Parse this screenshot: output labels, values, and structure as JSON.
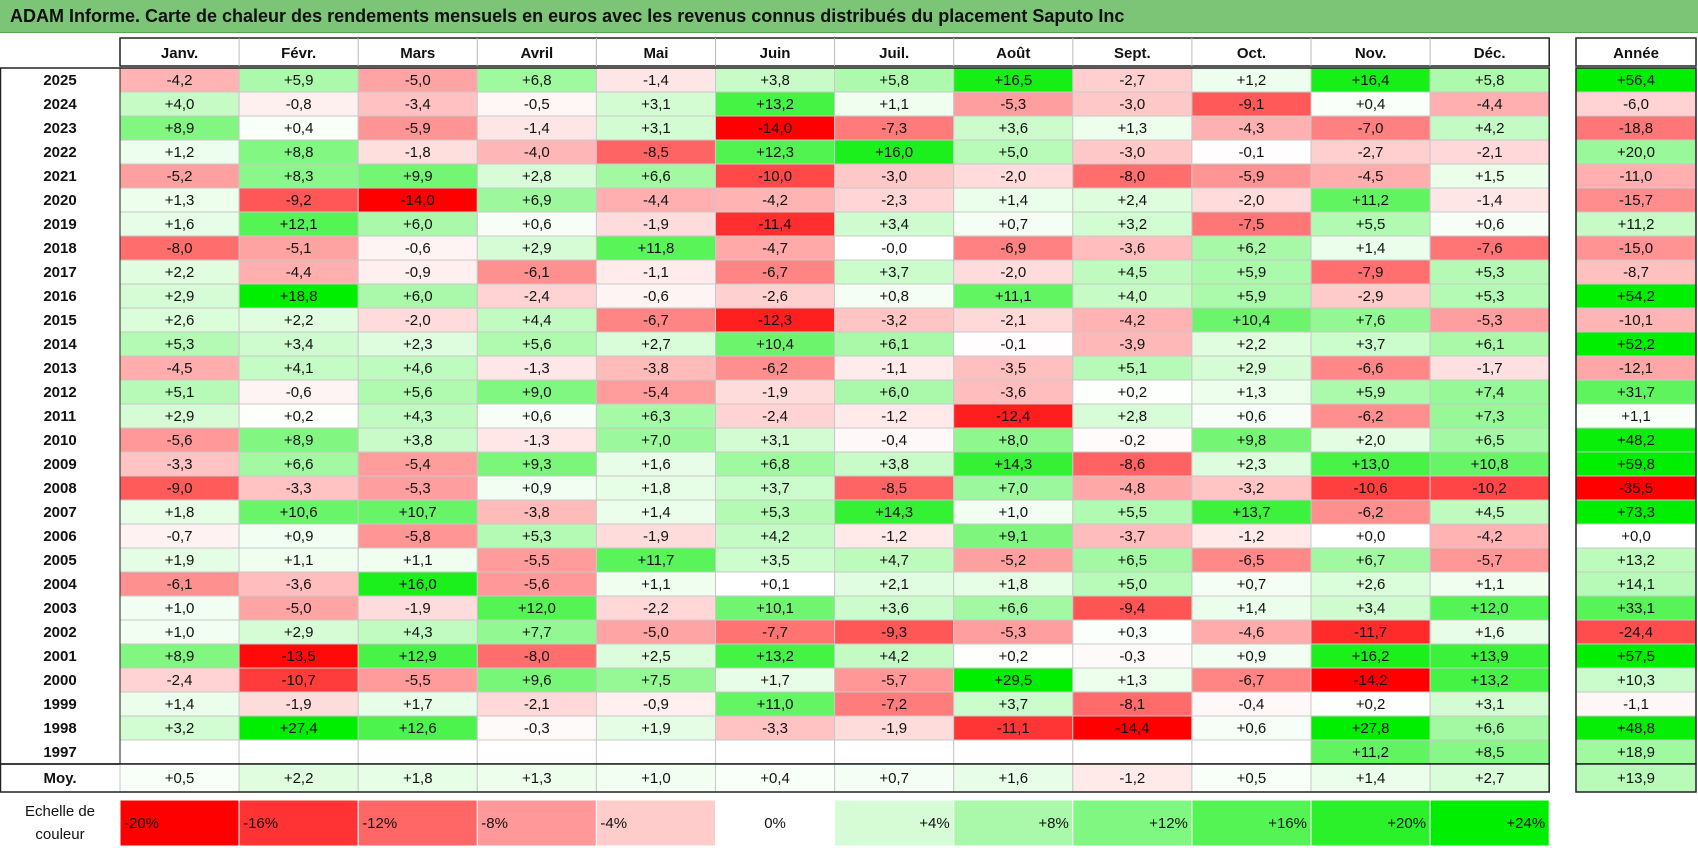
{
  "title": "ADAM Informe. Carte de chaleur des rendements mensuels en euros avec les revenus connus distribués du placement Saputo Inc",
  "chart_data": {
    "type": "heatmap",
    "columns": [
      "Janv.",
      "Févr.",
      "Mars",
      "Avril",
      "Mai",
      "Juin",
      "Juil.",
      "Août",
      "Sept.",
      "Oct.",
      "Nov.",
      "Déc."
    ],
    "year_header": "Année",
    "rows": [
      {
        "year": "2025",
        "values": [
          "-4,2",
          "+5,9",
          "-5,0",
          "+6,8",
          "-1,4",
          "+3,8",
          "+5,8",
          "+16,5",
          "-2,7",
          "+1,2",
          "+16,4",
          "+5,8"
        ],
        "annual": "+56,4"
      },
      {
        "year": "2024",
        "values": [
          "+4,0",
          "-0,8",
          "-3,4",
          "-0,5",
          "+3,1",
          "+13,2",
          "+1,1",
          "-5,3",
          "-3,0",
          "-9,1",
          "+0,4",
          "-4,4"
        ],
        "annual": "-6,0"
      },
      {
        "year": "2023",
        "values": [
          "+8,9",
          "+0,4",
          "-5,9",
          "-1,4",
          "+3,1",
          "-14,0",
          "-7,3",
          "+3,6",
          "+1,3",
          "-4,3",
          "-7,0",
          "+4,2"
        ],
        "annual": "-18,8"
      },
      {
        "year": "2022",
        "values": [
          "+1,2",
          "+8,8",
          "-1,8",
          "-4,0",
          "-8,5",
          "+12,3",
          "+16,0",
          "+5,0",
          "-3,0",
          "-0,1",
          "-2,7",
          "-2,1"
        ],
        "annual": "+20,0"
      },
      {
        "year": "2021",
        "values": [
          "-5,2",
          "+8,3",
          "+9,9",
          "+2,8",
          "+6,6",
          "-10,0",
          "-3,0",
          "-2,0",
          "-8,0",
          "-5,9",
          "-4,5",
          "+1,5"
        ],
        "annual": "-11,0"
      },
      {
        "year": "2020",
        "values": [
          "+1,3",
          "-9,2",
          "-14,0",
          "+6,9",
          "-4,4",
          "-4,2",
          "-2,3",
          "+1,4",
          "+2,4",
          "-2,0",
          "+11,2",
          "-1,4"
        ],
        "annual": "-15,7"
      },
      {
        "year": "2019",
        "values": [
          "+1,6",
          "+12,1",
          "+6,0",
          "+0,6",
          "-1,9",
          "-11,4",
          "+3,4",
          "+0,7",
          "+3,2",
          "-7,5",
          "+5,5",
          "+0,6"
        ],
        "annual": "+11,2"
      },
      {
        "year": "2018",
        "values": [
          "-8,0",
          "-5,1",
          "-0,6",
          "+2,9",
          "+11,8",
          "-4,7",
          "-0,0",
          "-6,9",
          "-3,6",
          "+6,2",
          "+1,4",
          "-7,6"
        ],
        "annual": "-15,0"
      },
      {
        "year": "2017",
        "values": [
          "+2,2",
          "-4,4",
          "-0,9",
          "-6,1",
          "-1,1",
          "-6,7",
          "+3,7",
          "-2,0",
          "+4,5",
          "+5,9",
          "-7,9",
          "+5,3"
        ],
        "annual": "-8,7"
      },
      {
        "year": "2016",
        "values": [
          "+2,9",
          "+18,8",
          "+6,0",
          "-2,4",
          "-0,6",
          "-2,6",
          "+0,8",
          "+11,1",
          "+4,0",
          "+5,9",
          "-2,9",
          "+5,3"
        ],
        "annual": "+54,2"
      },
      {
        "year": "2015",
        "values": [
          "+2,6",
          "+2,2",
          "-2,0",
          "+4,4",
          "-6,7",
          "-12,3",
          "-3,2",
          "-2,1",
          "-4,2",
          "+10,4",
          "+7,6",
          "-5,3"
        ],
        "annual": "-10,1"
      },
      {
        "year": "2014",
        "values": [
          "+5,3",
          "+3,4",
          "+2,3",
          "+5,6",
          "+2,7",
          "+10,4",
          "+6,1",
          "-0,1",
          "-3,9",
          "+2,2",
          "+3,7",
          "+6,1"
        ],
        "annual": "+52,2"
      },
      {
        "year": "2013",
        "values": [
          "-4,5",
          "+4,1",
          "+4,6",
          "-1,3",
          "-3,8",
          "-6,2",
          "-1,1",
          "-3,5",
          "+5,1",
          "+2,9",
          "-6,6",
          "-1,7"
        ],
        "annual": "-12,1"
      },
      {
        "year": "2012",
        "values": [
          "+5,1",
          "-0,6",
          "+5,6",
          "+9,0",
          "-5,4",
          "-1,9",
          "+6,0",
          "-3,6",
          "+0,2",
          "+1,3",
          "+5,9",
          "+7,4"
        ],
        "annual": "+31,7"
      },
      {
        "year": "2011",
        "values": [
          "+2,9",
          "+0,2",
          "+4,3",
          "+0,6",
          "+6,3",
          "-2,4",
          "-1,2",
          "-12,4",
          "+2,8",
          "+0,6",
          "-6,2",
          "+7,3"
        ],
        "annual": "+1,1"
      },
      {
        "year": "2010",
        "values": [
          "-5,6",
          "+8,9",
          "+3,8",
          "-1,3",
          "+7,0",
          "+3,1",
          "-0,4",
          "+8,0",
          "-0,2",
          "+9,8",
          "+2,0",
          "+6,5"
        ],
        "annual": "+48,2"
      },
      {
        "year": "2009",
        "values": [
          "-3,3",
          "+6,6",
          "-5,4",
          "+9,3",
          "+1,6",
          "+6,8",
          "+3,8",
          "+14,3",
          "-8,6",
          "+2,3",
          "+13,0",
          "+10,8"
        ],
        "annual": "+59,8"
      },
      {
        "year": "2008",
        "values": [
          "-9,0",
          "-3,3",
          "-5,3",
          "+0,9",
          "+1,8",
          "+3,7",
          "-8,5",
          "+7,0",
          "-4,8",
          "-3,2",
          "-10,6",
          "-10,2"
        ],
        "annual": "-35,5"
      },
      {
        "year": "2007",
        "values": [
          "+1,8",
          "+10,6",
          "+10,7",
          "-3,8",
          "+1,4",
          "+5,3",
          "+14,3",
          "+1,0",
          "+5,5",
          "+13,7",
          "-6,2",
          "+4,5"
        ],
        "annual": "+73,3"
      },
      {
        "year": "2006",
        "values": [
          "-0,7",
          "+0,9",
          "-5,8",
          "+5,3",
          "-1,9",
          "+4,2",
          "-1,2",
          "+9,1",
          "-3,7",
          "-1,2",
          "+0,0",
          "-4,2"
        ],
        "annual": "+0,0"
      },
      {
        "year": "2005",
        "values": [
          "+1,9",
          "+1,1",
          "+1,1",
          "-5,5",
          "+11,7",
          "+3,5",
          "+4,7",
          "-5,2",
          "+6,5",
          "-6,5",
          "+6,7",
          "-5,7"
        ],
        "annual": "+13,2"
      },
      {
        "year": "2004",
        "values": [
          "-6,1",
          "-3,6",
          "+16,0",
          "-5,6",
          "+1,1",
          "+0,1",
          "+2,1",
          "+1,8",
          "+5,0",
          "+0,7",
          "+2,6",
          "+1,1"
        ],
        "annual": "+14,1"
      },
      {
        "year": "2003",
        "values": [
          "+1,0",
          "-5,0",
          "-1,9",
          "+12,0",
          "-2,2",
          "+10,1",
          "+3,6",
          "+6,6",
          "-9,4",
          "+1,4",
          "+3,4",
          "+12,0"
        ],
        "annual": "+33,1"
      },
      {
        "year": "2002",
        "values": [
          "+1,0",
          "+2,9",
          "+4,3",
          "+7,7",
          "-5,0",
          "-7,7",
          "-9,3",
          "-5,3",
          "+0,3",
          "-4,6",
          "-11,7",
          "+1,6"
        ],
        "annual": "-24,4"
      },
      {
        "year": "2001",
        "values": [
          "+8,9",
          "-13,5",
          "+12,9",
          "-8,0",
          "+2,5",
          "+13,2",
          "+4,2",
          "+0,2",
          "-0,3",
          "+0,9",
          "+16,2",
          "+13,9"
        ],
        "annual": "+57,5"
      },
      {
        "year": "2000",
        "values": [
          "-2,4",
          "-10,7",
          "-5,5",
          "+9,6",
          "+7,5",
          "+1,7",
          "-5,7",
          "+29,5",
          "+1,3",
          "-6,7",
          "-14,2",
          "+13,2"
        ],
        "annual": "+10,3"
      },
      {
        "year": "1999",
        "values": [
          "+1,4",
          "-1,9",
          "+1,7",
          "-2,1",
          "-0,9",
          "+11,0",
          "-7,2",
          "+3,7",
          "-8,1",
          "-0,4",
          "+0,2",
          "+3,1"
        ],
        "annual": "-1,1"
      },
      {
        "year": "1998",
        "values": [
          "+3,2",
          "+27,4",
          "+12,6",
          "-0,3",
          "+1,9",
          "-3,3",
          "-1,9",
          "-11,1",
          "-14,4",
          "+0,6",
          "+27,8",
          "+6,6"
        ],
        "annual": "+48,8"
      },
      {
        "year": "1997",
        "values": [
          "",
          "",
          "",
          "",
          "",
          "",
          "",
          "",
          "",
          "",
          "+11,2",
          "+8,5"
        ],
        "annual": "+18,9"
      }
    ],
    "average": {
      "label": "Moy.",
      "values": [
        "+0,5",
        "+2,2",
        "+1,8",
        "+1,3",
        "+1,0",
        "+0,4",
        "+0,7",
        "+1,6",
        "-1,2",
        "+0,5",
        "+1,4",
        "+2,7"
      ],
      "annual": "+13,9"
    },
    "color_scale": {
      "label_line1": "Echelle de",
      "label_line2": "couleur",
      "stops": [
        "-20%",
        "-16%",
        "-12%",
        "-8%",
        "-4%",
        "0%",
        "+4%",
        "+8%",
        "+12%",
        "+16%",
        "+20%",
        "+24%"
      ],
      "stop_values": [
        -20,
        -16,
        -12,
        -8,
        -4,
        0,
        4,
        8,
        12,
        16,
        20,
        24
      ]
    },
    "colors": {
      "negative": "#ff0000",
      "neutral": "#ffffff",
      "positive": "#00ee00",
      "title_bar": "#7cc576"
    }
  }
}
